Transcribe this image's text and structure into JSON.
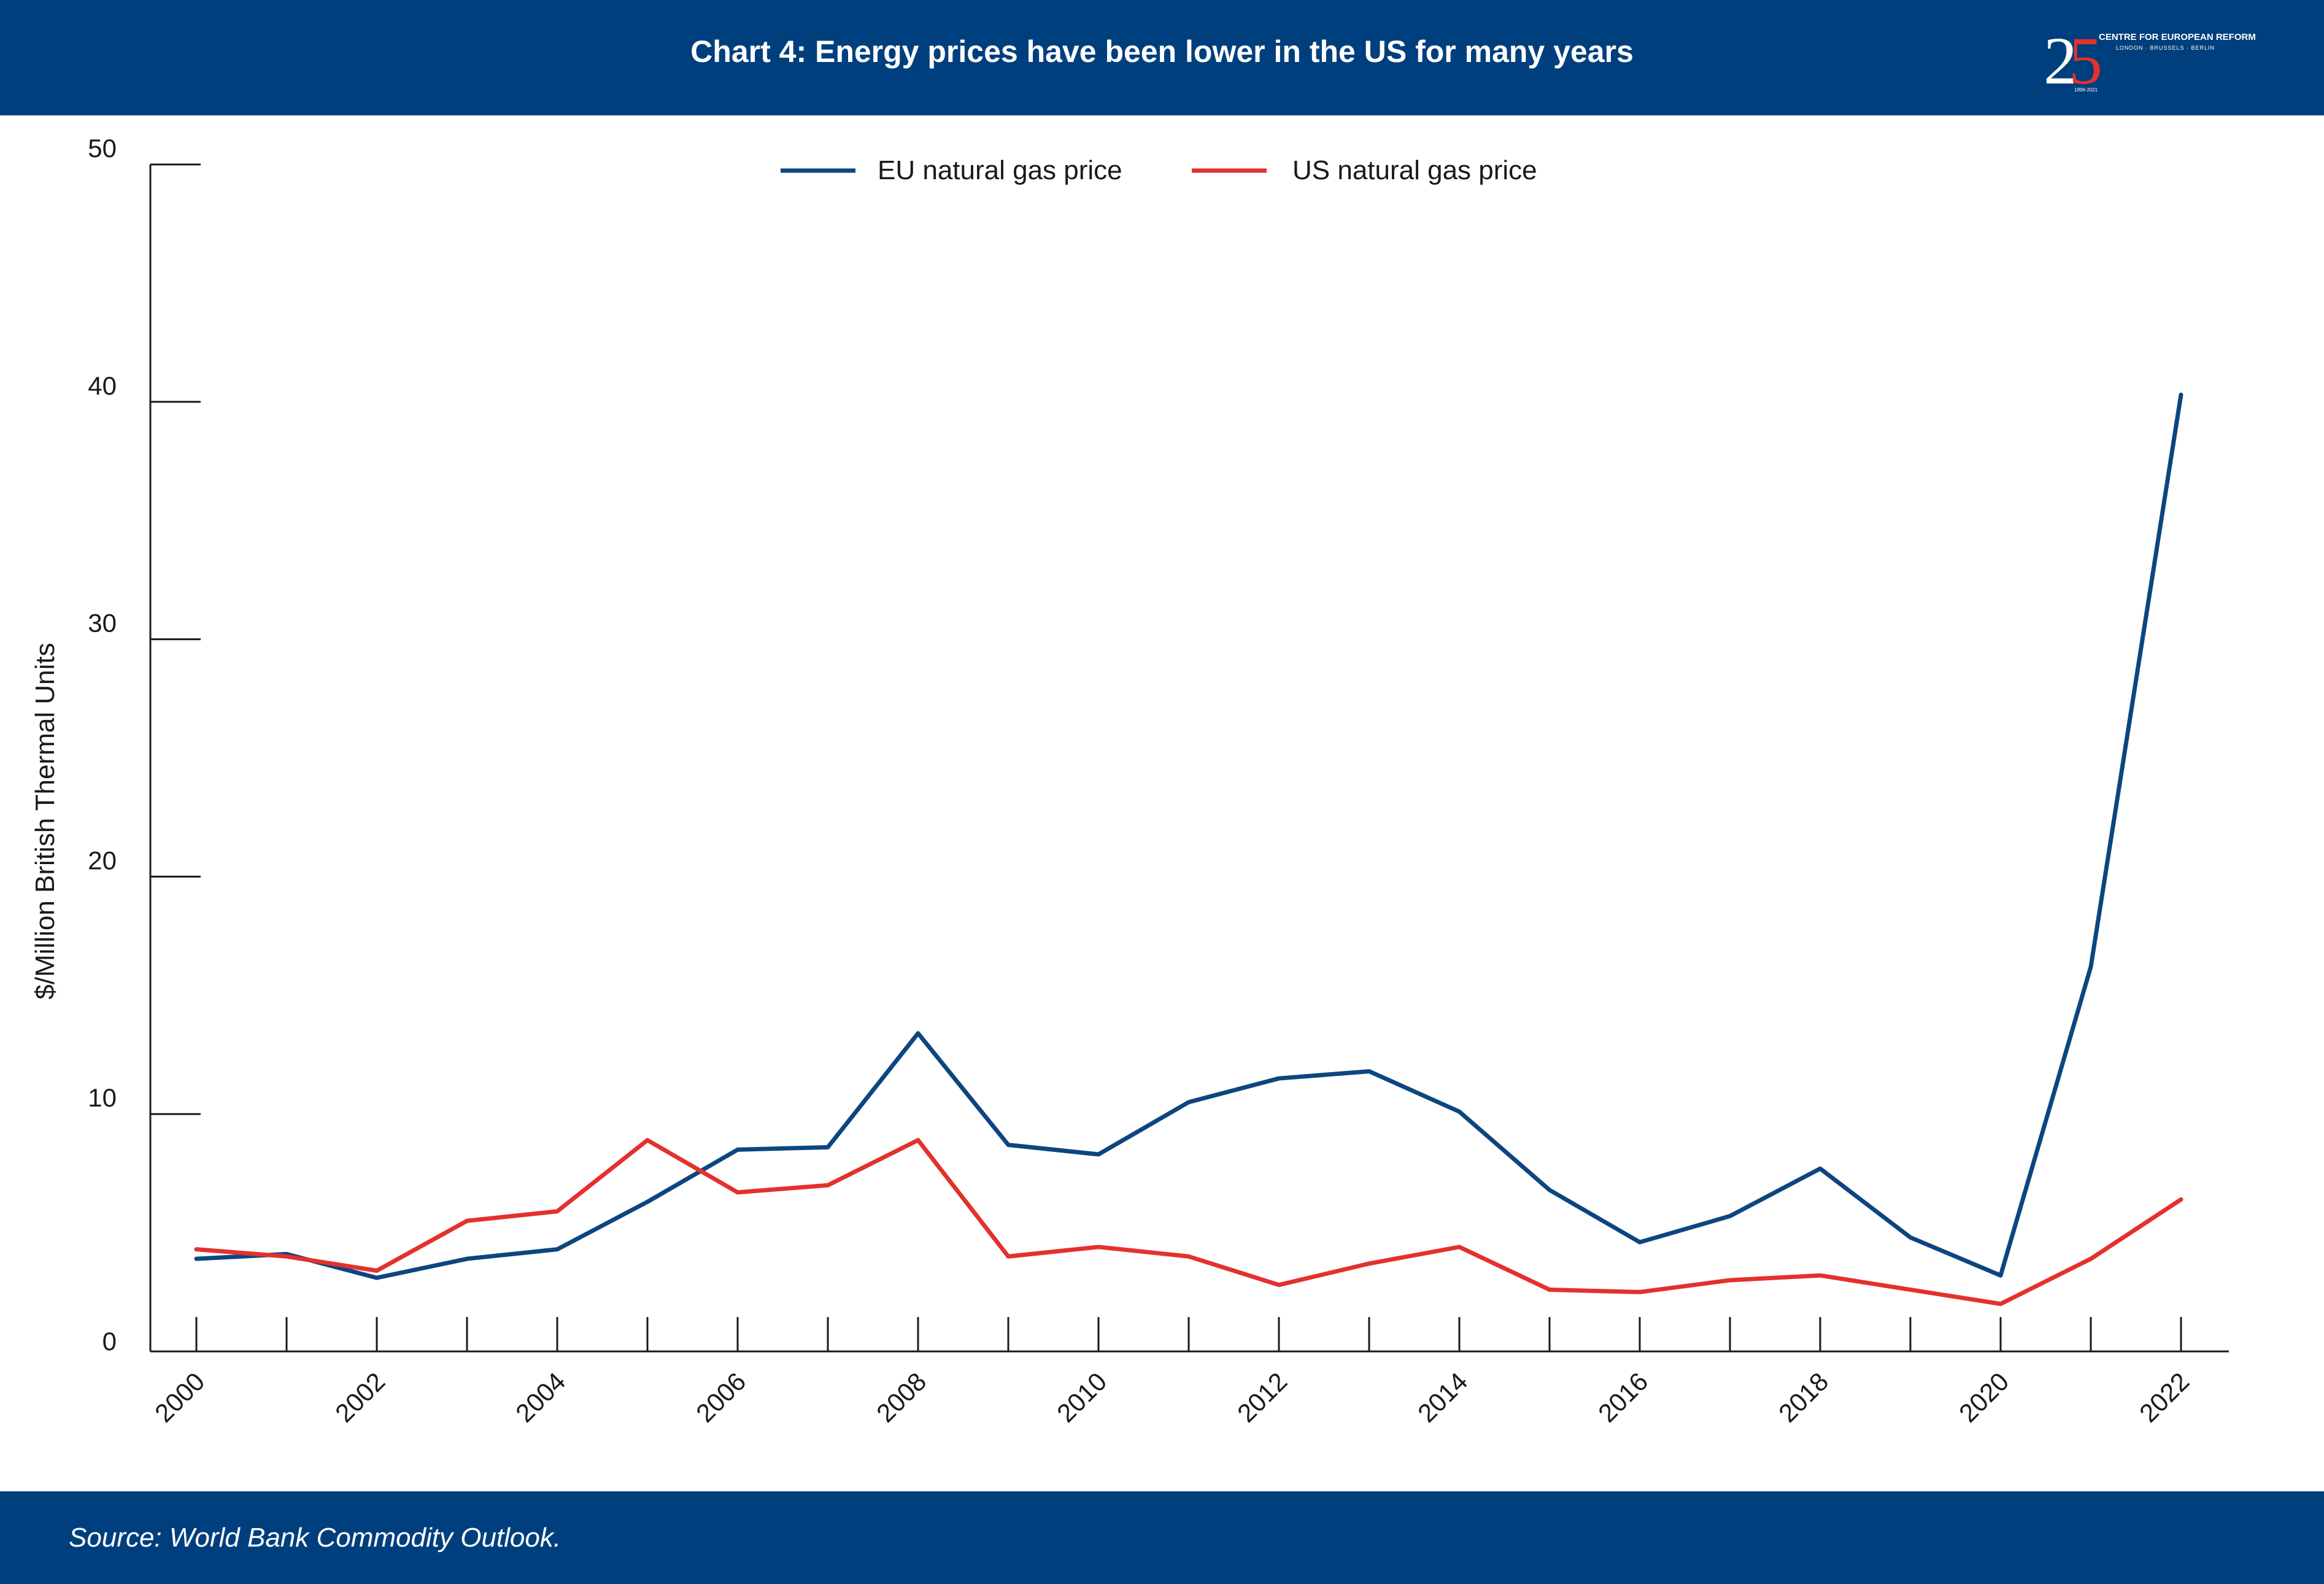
{
  "header": {
    "title": "Chart 4: Energy prices have been lower in the US for many years"
  },
  "logo": {
    "number_2": "2",
    "number_5": "5",
    "org": "CENTRE FOR EUROPEAN REFORM",
    "cities": "LONDON · BRUSSELS · BERLIN",
    "years": "1996-2021",
    "colors": {
      "accent": "#e3312d",
      "text": "#ffffff"
    }
  },
  "footer": {
    "source": "Source: World Bank Commodity Outlook."
  },
  "colors": {
    "brand": "#003f7d",
    "eu_series": "#0d4580",
    "us_series": "#e3312d",
    "axis": "#1a1a1a"
  },
  "chart_data": {
    "type": "line",
    "title": "",
    "xlabel": "",
    "ylabel": "$/Million British Thermal Units",
    "ylim": [
      0,
      50
    ],
    "yticks": [
      0,
      10,
      20,
      30,
      40,
      50
    ],
    "x": [
      2000,
      2001,
      2002,
      2003,
      2004,
      2005,
      2006,
      2007,
      2008,
      2009,
      2010,
      2011,
      2012,
      2013,
      2014,
      2015,
      2016,
      2017,
      2018,
      2019,
      2020,
      2021,
      2022
    ],
    "xtick_labels": [
      "2000",
      "2002",
      "2004",
      "2006",
      "2008",
      "2010",
      "2012",
      "2014",
      "2016",
      "2018",
      "2020",
      "2022"
    ],
    "grid": false,
    "legend_position": "top-center",
    "series": [
      {
        "name": "EU natural gas price",
        "color": "#0d4580",
        "values": [
          3.9,
          4.1,
          3.1,
          3.9,
          4.3,
          6.3,
          8.5,
          8.6,
          13.4,
          8.7,
          8.3,
          10.5,
          11.5,
          11.8,
          10.1,
          6.8,
          4.6,
          5.7,
          7.7,
          4.8,
          3.2,
          16.2,
          40.3
        ]
      },
      {
        "name": "US natural gas price",
        "color": "#e3312d",
        "values": [
          4.3,
          4.0,
          3.4,
          5.5,
          5.9,
          8.9,
          6.7,
          7.0,
          8.9,
          4.0,
          4.4,
          4.0,
          2.8,
          3.7,
          4.4,
          2.6,
          2.5,
          3.0,
          3.2,
          2.6,
          2.0,
          3.9,
          6.4
        ]
      }
    ]
  }
}
